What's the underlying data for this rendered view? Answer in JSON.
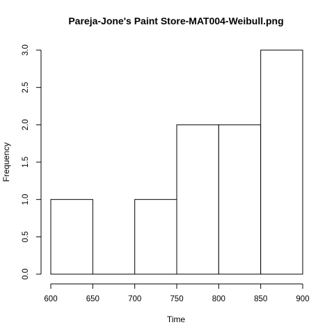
{
  "chart_data": {
    "type": "bar",
    "title": "Pareja-Jone's Paint Store-MAT004-Weibull.png",
    "xlabel": "Time",
    "ylabel": "Frequency",
    "bins": [
      {
        "start": 600,
        "end": 650,
        "value": 1
      },
      {
        "start": 650,
        "end": 700,
        "value": 0
      },
      {
        "start": 700,
        "end": 750,
        "value": 1
      },
      {
        "start": 750,
        "end": 800,
        "value": 2
      },
      {
        "start": 800,
        "end": 850,
        "value": 2
      },
      {
        "start": 850,
        "end": 900,
        "value": 3
      }
    ],
    "xlim": [
      600,
      900
    ],
    "ylim": [
      0,
      3
    ],
    "x_ticks": [
      600,
      650,
      700,
      750,
      800,
      850,
      900
    ],
    "y_ticks": [
      "0.0",
      "0.5",
      "1.0",
      "1.5",
      "2.0",
      "2.5",
      "3.0"
    ],
    "grid": false,
    "colors": {
      "bar_fill": "#ffffff",
      "bar_stroke": "#000000"
    }
  }
}
